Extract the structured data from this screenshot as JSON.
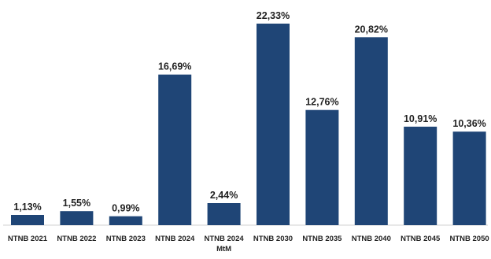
{
  "chart_data": {
    "type": "bar",
    "categories": [
      "NTNB 2021",
      "NTNB 2022",
      "NTNB 2023",
      "NTNB 2024",
      "NTNB 2024\nMtM",
      "NTNB 2030",
      "NTNB 2035",
      "NTNB 2040",
      "NTNB 2045",
      "NTNB 2050"
    ],
    "values": [
      1.13,
      1.55,
      0.99,
      16.69,
      2.44,
      22.33,
      12.76,
      20.82,
      10.91,
      10.36
    ],
    "data_labels": [
      "1,13%",
      "1,55%",
      "0,99%",
      "16,69%",
      "2,44%",
      "22,33%",
      "12,76%",
      "20,82%",
      "10,91%",
      "10,36%"
    ],
    "ylim": [
      0,
      22.33
    ],
    "grid": false,
    "legend": "none",
    "colors": {
      "bar": "#1f4576",
      "text": "#222222"
    }
  }
}
